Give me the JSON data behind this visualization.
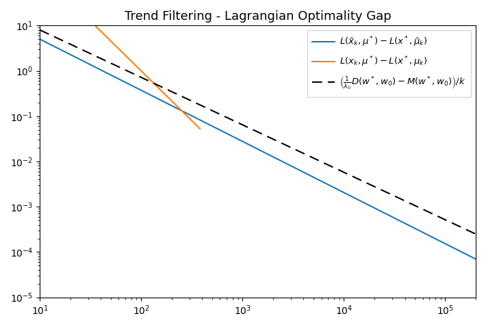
{
  "title": "Trend Filtering - Lagrangian Optimality Gap",
  "xlim": [
    10,
    200000
  ],
  "ylim": [
    1e-05,
    10
  ],
  "blue_label": "$L(\\bar{x}_k, \\mu^*) - L(x^*, \\bar{\\mu}_k)$",
  "orange_label": "$L(x_k, \\mu^*) - L(x^*, \\mu_k)$",
  "dashed_label": "$\\left(\\frac{1}{\\lambda_0}D(w^*, w_0) - M(w^*, w_0)\\right)/k$",
  "blue_color": "#1f77b4",
  "orange_color": "#ff7f0e",
  "dashed_color": "black",
  "blue_start_x": 10,
  "blue_start_y": 5.0,
  "blue_end_x": 200000,
  "blue_end_y": 7e-05,
  "dashed_start_x": 10,
  "dashed_start_y": 8.0,
  "dashed_end_x": 200000,
  "dashed_end_y": 0.00025,
  "orange_C": 25000,
  "orange_power": 2.2,
  "orange_x_start": 10,
  "orange_x_end": 380,
  "n_points": 2000
}
